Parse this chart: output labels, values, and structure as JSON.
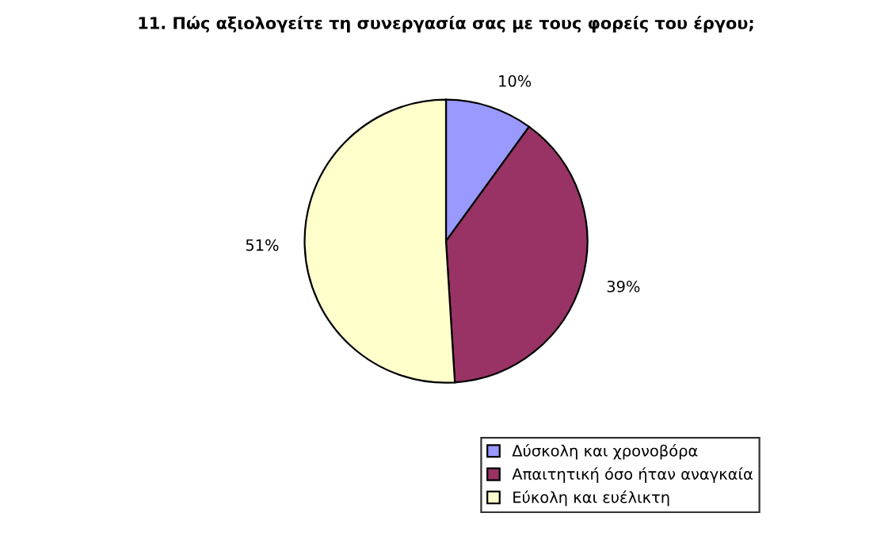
{
  "chart_data": {
    "type": "pie",
    "title": "11. Πώς αξιολογείτε τη συνεργασία σας με τους φορείς του έργου;",
    "categories": [
      "Δύσκολη και χρονοβόρα",
      "Απαιτητική όσο ήταν αναγκαία",
      "Εύκολη και ευέλικτη"
    ],
    "values": [
      10,
      39,
      51
    ],
    "colors": [
      "#9999ff",
      "#993366",
      "#ffffcc"
    ],
    "value_labels": [
      "10%",
      "39%",
      "51%"
    ],
    "legend": "bottom right"
  }
}
